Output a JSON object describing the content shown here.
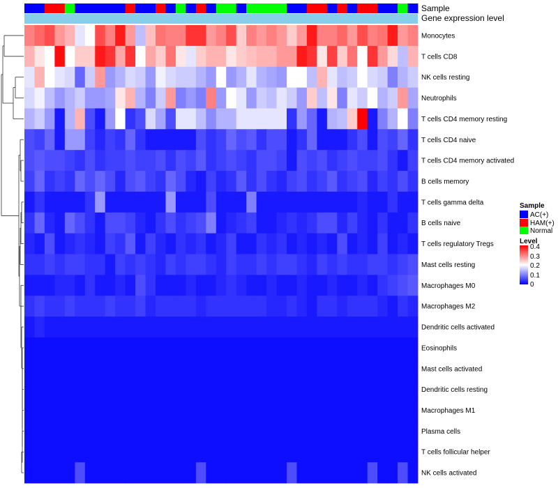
{
  "chart_data": {
    "type": "heatmap",
    "annotation_labels": {
      "sample": "Sample",
      "gene_expression": "Gene expression level"
    },
    "sample_groups": [
      "AC(+)",
      "AC(+)",
      "HAM(+)",
      "HAM(+)",
      "Normal",
      "AC(+)",
      "AC(+)",
      "AC(+)",
      "AC(+)",
      "AC(+)",
      "HAM(+)",
      "AC(+)",
      "AC(+)",
      "HAM(+)",
      "AC(+)",
      "Normal",
      "AC(+)",
      "HAM(+)",
      "AC(+)",
      "Normal",
      "Normal",
      "AC(+)",
      "Normal",
      "Normal",
      "Normal",
      "Normal",
      "AC(+)",
      "AC(+)",
      "HAM(+)",
      "HAM(+)",
      "AC(+)",
      "HAM(+)",
      "AC(+)",
      "HAM(+)",
      "HAM(+)",
      "AC(+)",
      "AC(+)",
      "Normal",
      "AC(+)"
    ],
    "rows": [
      "Monocytes",
      "T cells CD8",
      "NK cells resting",
      "Neutrophils",
      "T cells CD4 memory resting",
      "T cells CD4 naive",
      "T cells CD4 memory activated",
      "B cells memory",
      "T cells gamma delta",
      "B cells naive",
      "T cells regulatory  Tregs",
      "Mast cells resting",
      "Macrophages M0",
      "Macrophages M2",
      "Dendritic cells activated",
      "Eosinophils",
      "Mast cells activated",
      "Dendritic cells resting",
      "Macrophages M1",
      "Plasma cells",
      "T cells follicular helper",
      "NK cells activated"
    ],
    "values": [
      [
        0.3,
        0.32,
        0.34,
        0.28,
        0.26,
        0.18,
        0.2,
        0.34,
        0.3,
        0.38,
        0.28,
        0.15,
        0.25,
        0.31,
        0.3,
        0.3,
        0.36,
        0.36,
        0.28,
        0.3,
        0.34,
        0.24,
        0.3,
        0.28,
        0.3,
        0.28,
        0.24,
        0.28,
        0.38,
        0.3,
        0.3,
        0.32,
        0.28,
        0.34,
        0.3,
        0.31,
        0.38,
        0.28,
        0.3
      ],
      [
        0.26,
        0.22,
        0.2,
        0.39,
        0.2,
        0.24,
        0.24,
        0.38,
        0.36,
        0.27,
        0.36,
        0.2,
        0.27,
        0.24,
        0.31,
        0.22,
        0.18,
        0.24,
        0.26,
        0.26,
        0.22,
        0.24,
        0.25,
        0.26,
        0.26,
        0.28,
        0.28,
        0.38,
        0.36,
        0.22,
        0.35,
        0.24,
        0.31,
        0.2,
        0.36,
        0.28,
        0.23,
        0.15,
        0.26
      ],
      [
        0.18,
        0.26,
        0.2,
        0.18,
        0.17,
        0.08,
        0.16,
        0.28,
        0.12,
        0.14,
        0.17,
        0.16,
        0.12,
        0.19,
        0.17,
        0.16,
        0.16,
        0.14,
        0.12,
        0.2,
        0.12,
        0.14,
        0.18,
        0.14,
        0.13,
        0.12,
        0.2,
        0.2,
        0.15,
        0.26,
        0.18,
        0.15,
        0.16,
        0.2,
        0.17,
        0.16,
        0.1,
        0.14,
        0.16
      ],
      [
        0.17,
        0.19,
        0.15,
        0.12,
        0.14,
        0.16,
        0.12,
        0.12,
        0.13,
        0.22,
        0.26,
        0.14,
        0.1,
        0.16,
        0.28,
        0.1,
        0.12,
        0.1,
        0.3,
        0.12,
        0.2,
        0.18,
        0.12,
        0.16,
        0.15,
        0.18,
        0.16,
        0.12,
        0.24,
        0.15,
        0.22,
        0.1,
        0.18,
        0.16,
        0.2,
        0.14,
        0.16,
        0.28,
        0.13
      ],
      [
        0.14,
        0.16,
        0.12,
        0.02,
        0.14,
        0.26,
        0.06,
        0.02,
        0.12,
        0.2,
        0.04,
        0.06,
        0.17,
        0.13,
        0.06,
        0.18,
        0.18,
        0.15,
        0.11,
        0.14,
        0.14,
        0.18,
        0.18,
        0.18,
        0.18,
        0.18,
        0.04,
        0.12,
        0.08,
        0.02,
        0.14,
        0.15,
        0.24,
        0.4,
        0.02,
        0.1,
        0.14,
        0.2,
        0.1
      ],
      [
        0.06,
        0.05,
        0.08,
        0.02,
        0.12,
        0.12,
        0.05,
        0.03,
        0.05,
        0.04,
        0.08,
        0.04,
        0.02,
        0.02,
        0.02,
        0.02,
        0.02,
        0.06,
        0.04,
        0.05,
        0.08,
        0.06,
        0.07,
        0.04,
        0.06,
        0.06,
        0.02,
        0.04,
        0.08,
        0.02,
        0.02,
        0.02,
        0.04,
        0.06,
        0.02,
        0.06,
        0.05,
        0.08,
        0.04
      ],
      [
        0.06,
        0.07,
        0.06,
        0.06,
        0.05,
        0.04,
        0.06,
        0.04,
        0.05,
        0.05,
        0.06,
        0.05,
        0.05,
        0.06,
        0.04,
        0.06,
        0.05,
        0.07,
        0.04,
        0.05,
        0.06,
        0.05,
        0.04,
        0.06,
        0.06,
        0.05,
        0.02,
        0.06,
        0.05,
        0.06,
        0.04,
        0.05,
        0.06,
        0.05,
        0.05,
        0.06,
        0.04,
        0.02,
        0.05
      ],
      [
        0.05,
        0.08,
        0.04,
        0.05,
        0.04,
        0.08,
        0.06,
        0.08,
        0.06,
        0.03,
        0.06,
        0.07,
        0.05,
        0.04,
        0.08,
        0.06,
        0.03,
        0.02,
        0.05,
        0.03,
        0.04,
        0.07,
        0.04,
        0.06,
        0.04,
        0.03,
        0.05,
        0.06,
        0.04,
        0.05,
        0.07,
        0.04,
        0.05,
        0.06,
        0.03,
        0.05,
        0.04,
        0.06,
        0.04
      ],
      [
        0.02,
        0.04,
        0.02,
        0.02,
        0.02,
        0.02,
        0.04,
        0.12,
        0.02,
        0.02,
        0.02,
        0.02,
        0.02,
        0.02,
        0.12,
        0.02,
        0.02,
        0.02,
        0.06,
        0.02,
        0.02,
        0.02,
        0.1,
        0.02,
        0.02,
        0.02,
        0.02,
        0.02,
        0.02,
        0.02,
        0.02,
        0.02,
        0.02,
        0.03,
        0.02,
        0.02,
        0.04,
        0.02,
        0.02
      ],
      [
        0.04,
        0.08,
        0.03,
        0.02,
        0.08,
        0.06,
        0.04,
        0.02,
        0.06,
        0.06,
        0.05,
        0.03,
        0.02,
        0.04,
        0.06,
        0.04,
        0.05,
        0.06,
        0.1,
        0.02,
        0.03,
        0.04,
        0.05,
        0.02,
        0.02,
        0.03,
        0.04,
        0.03,
        0.04,
        0.06,
        0.06,
        0.03,
        0.05,
        0.03,
        0.02,
        0.04,
        0.02,
        0.02,
        0.04
      ],
      [
        0.03,
        0.02,
        0.06,
        0.02,
        0.03,
        0.04,
        0.03,
        0.02,
        0.05,
        0.04,
        0.07,
        0.02,
        0.05,
        0.03,
        0.02,
        0.04,
        0.03,
        0.04,
        0.02,
        0.03,
        0.05,
        0.02,
        0.02,
        0.04,
        0.03,
        0.04,
        0.02,
        0.03,
        0.02,
        0.03,
        0.02,
        0.06,
        0.02,
        0.03,
        0.02,
        0.05,
        0.02,
        0.03,
        0.02
      ],
      [
        0.04,
        0.04,
        0.05,
        0.04,
        0.05,
        0.05,
        0.04,
        0.04,
        0.02,
        0.05,
        0.04,
        0.05,
        0.04,
        0.03,
        0.05,
        0.04,
        0.05,
        0.05,
        0.04,
        0.03,
        0.05,
        0.04,
        0.04,
        0.05,
        0.04,
        0.05,
        0.05,
        0.04,
        0.03,
        0.05,
        0.04,
        0.05,
        0.04,
        0.04,
        0.05,
        0.05,
        0.04,
        0.05,
        0.06
      ],
      [
        0.02,
        0.02,
        0.02,
        0.03,
        0.03,
        0.02,
        0.04,
        0.02,
        0.02,
        0.03,
        0.02,
        0.06,
        0.04,
        0.02,
        0.02,
        0.02,
        0.03,
        0.02,
        0.02,
        0.03,
        0.04,
        0.03,
        0.02,
        0.02,
        0.03,
        0.02,
        0.02,
        0.03,
        0.02,
        0.02,
        0.03,
        0.02,
        0.02,
        0.03,
        0.02,
        0.04,
        0.05,
        0.06,
        0.07
      ],
      [
        0.04,
        0.05,
        0.04,
        0.04,
        0.05,
        0.04,
        0.04,
        0.04,
        0.05,
        0.04,
        0.04,
        0.05,
        0.03,
        0.04,
        0.04,
        0.04,
        0.04,
        0.03,
        0.04,
        0.04,
        0.04,
        0.04,
        0.04,
        0.04,
        0.03,
        0.03,
        0.04,
        0.03,
        0.02,
        0.04,
        0.04,
        0.03,
        0.04,
        0.04,
        0.04,
        0.03,
        0.02,
        0.04,
        0.03
      ],
      [
        0.02,
        0.03,
        0.02,
        0.02,
        0.02,
        0.02,
        0.02,
        0.02,
        0.02,
        0.02,
        0.02,
        0.02,
        0.02,
        0.02,
        0.02,
        0.02,
        0.02,
        0.02,
        0.02,
        0.02,
        0.02,
        0.02,
        0.02,
        0.02,
        0.02,
        0.02,
        0.02,
        0.02,
        0.02,
        0.02,
        0.02,
        0.02,
        0.02,
        0.02,
        0.02,
        0.02,
        0.02,
        0.02,
        0.02
      ],
      [
        0.01,
        0.01,
        0.01,
        0.01,
        0.01,
        0.01,
        0.01,
        0.01,
        0.01,
        0.01,
        0.01,
        0.01,
        0.01,
        0.01,
        0.01,
        0.01,
        0.01,
        0.01,
        0.01,
        0.01,
        0.01,
        0.01,
        0.01,
        0.01,
        0.01,
        0.01,
        0.01,
        0.01,
        0.01,
        0.01,
        0.01,
        0.01,
        0.01,
        0.01,
        0.01,
        0.01,
        0.01,
        0.01,
        0.01
      ],
      [
        0.01,
        0.01,
        0.01,
        0.01,
        0.01,
        0.01,
        0.01,
        0.01,
        0.01,
        0.01,
        0.01,
        0.01,
        0.01,
        0.01,
        0.01,
        0.01,
        0.01,
        0.01,
        0.01,
        0.01,
        0.01,
        0.01,
        0.01,
        0.01,
        0.01,
        0.01,
        0.01,
        0.01,
        0.01,
        0.01,
        0.01,
        0.01,
        0.01,
        0.01,
        0.01,
        0.01,
        0.01,
        0.01,
        0.01
      ],
      [
        0.01,
        0.01,
        0.01,
        0.01,
        0.01,
        0.01,
        0.01,
        0.01,
        0.01,
        0.01,
        0.01,
        0.01,
        0.01,
        0.01,
        0.01,
        0.01,
        0.01,
        0.01,
        0.01,
        0.01,
        0.01,
        0.01,
        0.01,
        0.01,
        0.01,
        0.01,
        0.01,
        0.01,
        0.01,
        0.01,
        0.01,
        0.01,
        0.01,
        0.01,
        0.01,
        0.01,
        0.01,
        0.01,
        0.01
      ],
      [
        0.01,
        0.01,
        0.01,
        0.01,
        0.01,
        0.01,
        0.01,
        0.01,
        0.01,
        0.01,
        0.01,
        0.01,
        0.01,
        0.01,
        0.01,
        0.01,
        0.01,
        0.01,
        0.01,
        0.01,
        0.01,
        0.01,
        0.01,
        0.01,
        0.01,
        0.01,
        0.01,
        0.01,
        0.01,
        0.01,
        0.01,
        0.01,
        0.01,
        0.01,
        0.01,
        0.01,
        0.01,
        0.01,
        0.01
      ],
      [
        0.01,
        0.01,
        0.01,
        0.01,
        0.01,
        0.01,
        0.01,
        0.01,
        0.01,
        0.01,
        0.01,
        0.01,
        0.01,
        0.01,
        0.01,
        0.01,
        0.01,
        0.01,
        0.01,
        0.01,
        0.01,
        0.01,
        0.01,
        0.01,
        0.01,
        0.01,
        0.01,
        0.01,
        0.01,
        0.01,
        0.01,
        0.01,
        0.01,
        0.01,
        0.01,
        0.01,
        0.01,
        0.01,
        0.01
      ],
      [
        0.01,
        0.01,
        0.01,
        0.01,
        0.01,
        0.01,
        0.01,
        0.01,
        0.01,
        0.01,
        0.01,
        0.01,
        0.01,
        0.01,
        0.01,
        0.01,
        0.01,
        0.01,
        0.01,
        0.01,
        0.01,
        0.01,
        0.01,
        0.01,
        0.01,
        0.01,
        0.01,
        0.01,
        0.01,
        0.01,
        0.01,
        0.01,
        0.01,
        0.01,
        0.01,
        0.01,
        0.01,
        0.01,
        0.01
      ],
      [
        0.01,
        0.01,
        0.01,
        0.01,
        0.01,
        0.06,
        0.01,
        0.01,
        0.01,
        0.01,
        0.01,
        0.01,
        0.01,
        0.01,
        0.01,
        0.01,
        0.01,
        0.06,
        0.01,
        0.01,
        0.01,
        0.01,
        0.01,
        0.01,
        0.01,
        0.01,
        0.06,
        0.01,
        0.01,
        0.01,
        0.01,
        0.01,
        0.01,
        0.01,
        0.06,
        0.01,
        0.01,
        0.06,
        0.01
      ]
    ],
    "sample_legend": {
      "title": "Sample",
      "entries": [
        {
          "label": "AC(+)",
          "color": "#0000ff"
        },
        {
          "label": "HAM(+)",
          "color": "#ff0000"
        },
        {
          "label": "Normal",
          "color": "#00ff00"
        }
      ]
    },
    "level_legend": {
      "title": "Level",
      "ticks": [
        "0.4",
        "0.3",
        "0.2",
        "0.1",
        "0"
      ],
      "range": [
        0,
        0.4
      ]
    },
    "colors": {
      "low": "#0000ff",
      "mid": "#ffffff",
      "high": "#ff0000",
      "gene_expression_bar": "#87ceeb"
    }
  }
}
